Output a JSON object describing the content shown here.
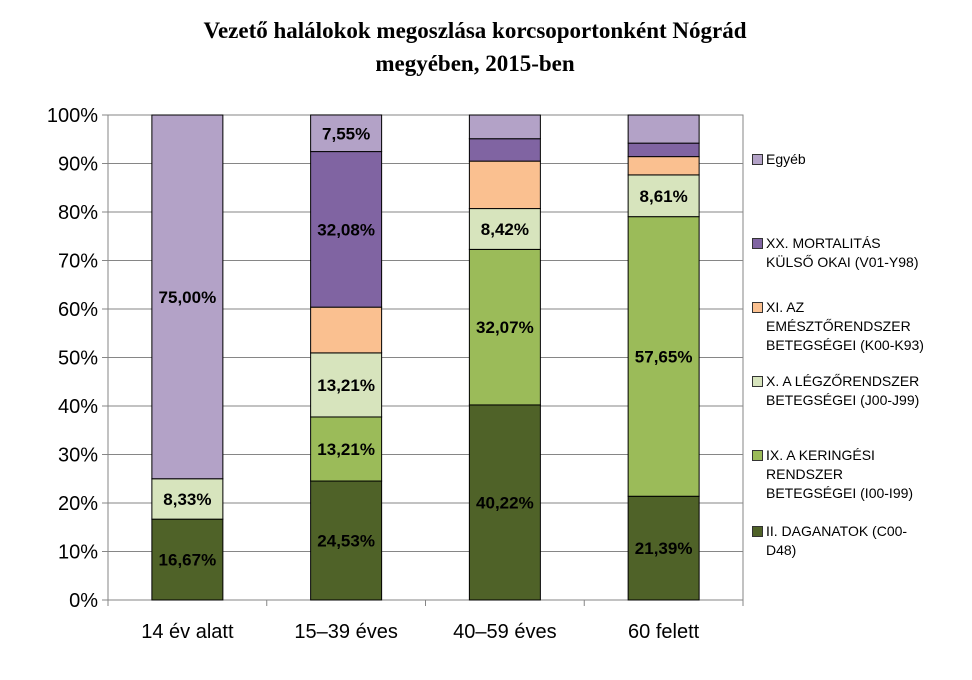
{
  "chart_data": {
    "type": "bar",
    "stacked": true,
    "percent": true,
    "title_line1": "Vezető halálokok megoszlása korcsoportonként Nógrád",
    "title_line2": "megyében,  2015-ben",
    "categories": [
      "14 év alatt",
      "15–39 éves",
      "40–59 éves",
      "60 felett"
    ],
    "y_ticks": [
      "0%",
      "10%",
      "20%",
      "30%",
      "40%",
      "50%",
      "60%",
      "70%",
      "80%",
      "90%",
      "100%"
    ],
    "ylim": [
      0,
      100
    ],
    "grid": true,
    "legend_position": "right",
    "series": [
      {
        "name": "II. DAGANATOK (C00-D48)",
        "color": "#4f6228",
        "values": [
          16.67,
          24.53,
          40.22,
          21.39
        ],
        "labels": [
          "16,67%",
          "24,53%",
          "40,22%",
          "21,39%"
        ]
      },
      {
        "name": "IX. A KERINGÉSI RENDSZER BETEGSÉGEI (I00-I99)",
        "color": "#9bbb59",
        "values": [
          0,
          13.21,
          32.07,
          57.65
        ],
        "labels": [
          "",
          "13,21%",
          "32,07%",
          "57,65%"
        ]
      },
      {
        "name": "X. A LÉGZŐRENDSZER BETEGSÉGEI (J00-J99)",
        "color": "#d7e4bd",
        "values": [
          8.33,
          13.21,
          8.42,
          8.61
        ],
        "labels": [
          "8,33%",
          "13,21%",
          "8,42%",
          "8,61%"
        ]
      },
      {
        "name": "XI. AZ EMÉSZTŐRENDSZER BETEGSÉGEI (K00-K93)",
        "color": "#fac090",
        "values": [
          0,
          9.43,
          9.78,
          3.77
        ],
        "labels": [
          "",
          "",
          "",
          ""
        ]
      },
      {
        "name": "XX. MORTALITÁS KÜLSŐ OKAI (V01-Y98)",
        "color": "#8064a2",
        "values": [
          0,
          32.08,
          4.62,
          2.78
        ],
        "labels": [
          "",
          "32,08%",
          "",
          ""
        ]
      },
      {
        "name": "Egyéb",
        "color": "#b3a2c7",
        "values": [
          75.0,
          7.55,
          4.89,
          5.8
        ],
        "labels": [
          "75,00%",
          "7,55%",
          "",
          ""
        ]
      }
    ],
    "legend": [
      {
        "lines": [
          "Egyéb"
        ],
        "color": "#b3a2c7"
      },
      {
        "lines": [
          "XX. MORTALITÁS",
          "KÜLSŐ OKAI (V01-Y98)"
        ],
        "color": "#8064a2"
      },
      {
        "lines": [
          "XI. AZ",
          "EMÉSZTŐRENDSZER",
          "BETEGSÉGEI (K00-K93)"
        ],
        "color": "#fac090"
      },
      {
        "lines": [
          "X. A LÉGZŐRENDSZER",
          "BETEGSÉGEI (J00-J99)"
        ],
        "color": "#d7e4bd"
      },
      {
        "lines": [
          "IX. A KERINGÉSI",
          "RENDSZER",
          "BETEGSÉGEI (I00-I99)"
        ],
        "color": "#9bbb59"
      },
      {
        "lines": [
          "II. DAGANATOK (C00-",
          "D48)"
        ],
        "color": "#4f6228"
      }
    ]
  }
}
